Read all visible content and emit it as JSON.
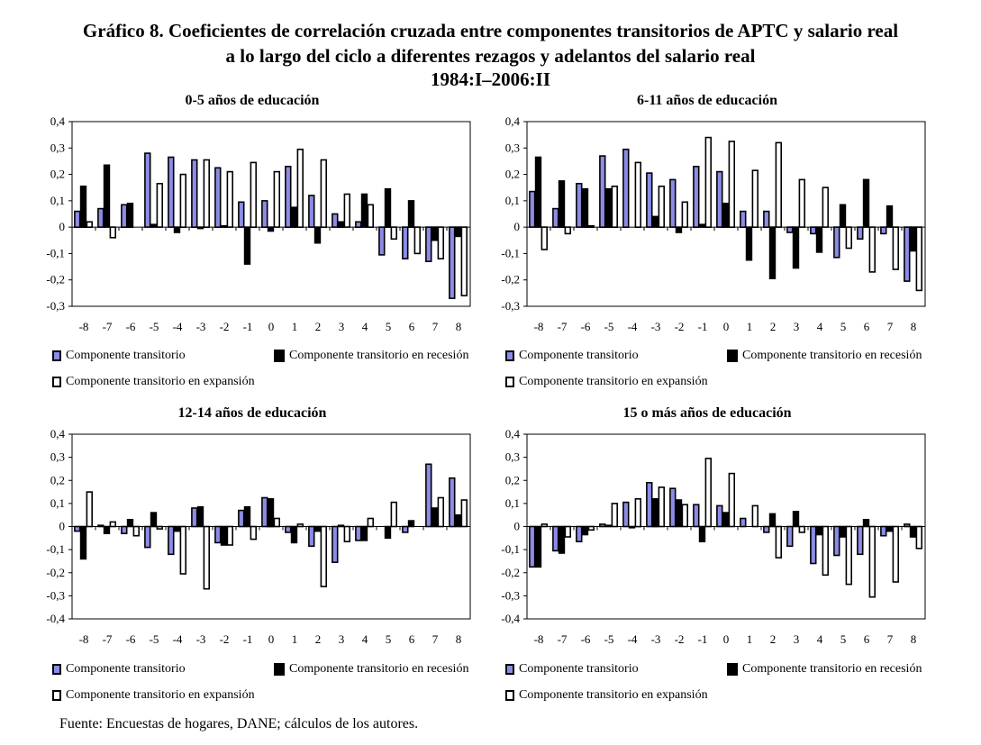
{
  "title": {
    "line1": "Gráfico 8. Coeficientes de correlación cruzada entre componentes transitorios de APTC y salario real",
    "line2": "a lo largo del ciclo a diferentes rezagos y adelantos del salario real",
    "line3": "1984:I–2006:II"
  },
  "legend": {
    "transitorio": "Componente transitorio",
    "recesion": "Componente transitorio en recesión",
    "expansion": "Componente transitorio en expansión"
  },
  "colors": {
    "transitorio": "#8c8ce6",
    "recesion": "#000000",
    "expansion": "#ffffff"
  },
  "footer": "Fuente: Encuestas de hogares, DANE; cálculos de los autores.",
  "chart_data": [
    {
      "type": "bar",
      "title": "0-5 años de educación",
      "categories": [
        "-8",
        "-7",
        "-6",
        "-5",
        "-4",
        "-3",
        "-2",
        "-1",
        "0",
        "1",
        "2",
        "3",
        "4",
        "5",
        "6",
        "7",
        "8"
      ],
      "ylim": [
        -0.3,
        0.4
      ],
      "yticks": [
        "0,4",
        "0,3",
        "0,2",
        "0,1",
        "0",
        "-0,1",
        "-0,2",
        "-0,3"
      ],
      "ytick_values": [
        0.4,
        0.3,
        0.2,
        0.1,
        0,
        -0.1,
        -0.2,
        -0.3
      ],
      "xlabel": "",
      "ylabel": "",
      "series": [
        {
          "name": "Componente transitorio",
          "values": [
            0.06,
            0.07,
            0.085,
            0.28,
            0.265,
            0.255,
            0.225,
            0.095,
            0.1,
            0.23,
            0.12,
            0.05,
            0.02,
            -0.105,
            -0.12,
            -0.13,
            -0.27
          ]
        },
        {
          "name": "Componente transitorio en recesión",
          "values": [
            0.155,
            0.235,
            0.09,
            0.01,
            -0.02,
            -0.005,
            0.005,
            -0.14,
            -0.015,
            0.075,
            -0.06,
            0.02,
            0.125,
            0.145,
            0.1,
            -0.05,
            -0.035
          ]
        },
        {
          "name": "Componente transitorio en expansión",
          "values": [
            0.02,
            -0.04,
            0,
            0.165,
            0.2,
            0.255,
            0.21,
            0.245,
            0.21,
            0.295,
            0.255,
            0.125,
            0.085,
            -0.045,
            -0.1,
            -0.12,
            -0.26
          ]
        }
      ]
    },
    {
      "type": "bar",
      "title": "6-11 años de educación",
      "categories": [
        "-8",
        "-7",
        "-6",
        "-5",
        "-4",
        "-3",
        "-2",
        "-1",
        "0",
        "1",
        "2",
        "3",
        "4",
        "5",
        "6",
        "7",
        "8"
      ],
      "ylim": [
        -0.3,
        0.4
      ],
      "yticks": [
        "0,4",
        "0,3",
        "0,2",
        "0,1",
        "0",
        "-0,1",
        "-0,2",
        "-0,3"
      ],
      "ytick_values": [
        0.4,
        0.3,
        0.2,
        0.1,
        0,
        -0.1,
        -0.2,
        -0.3
      ],
      "xlabel": "",
      "ylabel": "",
      "series": [
        {
          "name": "Componente transitorio",
          "values": [
            0.135,
            0.07,
            0.165,
            0.27,
            0.295,
            0.205,
            0.18,
            0.23,
            0.21,
            0.06,
            0.06,
            -0.02,
            -0.025,
            -0.115,
            -0.045,
            -0.025,
            -0.205
          ]
        },
        {
          "name": "Componente transitorio en recesión",
          "values": [
            0.265,
            0.175,
            0.145,
            0.145,
            0,
            0.04,
            -0.02,
            0.01,
            0.09,
            -0.125,
            -0.195,
            -0.155,
            -0.095,
            0.085,
            0.18,
            0.08,
            -0.09
          ]
        },
        {
          "name": "Componente transitorio en expansión",
          "values": [
            -0.085,
            -0.025,
            0.005,
            0.155,
            0.245,
            0.155,
            0.095,
            0.34,
            0.325,
            0.215,
            0.32,
            0.18,
            0.15,
            -0.08,
            -0.17,
            -0.16,
            -0.24
          ]
        }
      ]
    },
    {
      "type": "bar",
      "title": "12-14 años de educación",
      "categories": [
        "-8",
        "-7",
        "-6",
        "-5",
        "-4",
        "-3",
        "-2",
        "-1",
        "0",
        "1",
        "2",
        "3",
        "4",
        "5",
        "6",
        "7",
        "8"
      ],
      "ylim": [
        -0.4,
        0.4
      ],
      "yticks": [
        "0,4",
        "0,3",
        "0,2",
        "0,1",
        "0",
        "-0,1",
        "-0,2",
        "-0,3",
        "-0,4"
      ],
      "ytick_values": [
        0.4,
        0.3,
        0.2,
        0.1,
        0,
        -0.1,
        -0.2,
        -0.3,
        -0.4
      ],
      "xlabel": "",
      "ylabel": "",
      "series": [
        {
          "name": "Componente transitorio",
          "values": [
            -0.02,
            0.005,
            -0.03,
            -0.09,
            -0.12,
            0.08,
            -0.07,
            0.07,
            0.125,
            -0.025,
            -0.085,
            -0.155,
            -0.06,
            0,
            -0.025,
            0.27,
            0.21
          ]
        },
        {
          "name": "Componente transitorio en recesión",
          "values": [
            -0.14,
            -0.03,
            0.03,
            0.06,
            -0.02,
            0.085,
            -0.08,
            0.085,
            0.12,
            -0.07,
            -0.02,
            0.005,
            -0.06,
            -0.05,
            0.025,
            0.08,
            0.05
          ]
        },
        {
          "name": "Componente transitorio en expansión",
          "values": [
            0.15,
            0.02,
            -0.04,
            -0.01,
            -0.205,
            -0.27,
            -0.08,
            -0.055,
            0.035,
            0.01,
            -0.26,
            -0.065,
            0.035,
            0.105,
            0,
            0.125,
            0.115
          ]
        }
      ]
    },
    {
      "type": "bar",
      "title": "15 o más años de educación",
      "categories": [
        "-8",
        "-7",
        "-6",
        "-5",
        "-4",
        "-3",
        "-2",
        "-1",
        "0",
        "1",
        "2",
        "3",
        "4",
        "5",
        "6",
        "7",
        "8"
      ],
      "ylim": [
        -0.4,
        0.4
      ],
      "yticks": [
        "0,4",
        "0,3",
        "0,2",
        "0,1",
        "0",
        "-0,1",
        "-0,2",
        "-0,3",
        "-0,4"
      ],
      "ytick_values": [
        0.4,
        0.3,
        0.2,
        0.1,
        0,
        -0.1,
        -0.2,
        -0.3,
        -0.4
      ],
      "xlabel": "",
      "ylabel": "",
      "series": [
        {
          "name": "Componente transitorio",
          "values": [
            -0.175,
            -0.105,
            -0.065,
            0.01,
            0.105,
            0.19,
            0.165,
            0.095,
            0.09,
            0.035,
            -0.025,
            -0.085,
            -0.16,
            -0.125,
            -0.12,
            -0.04,
            0.01
          ]
        },
        {
          "name": "Componente transitorio en recesión",
          "values": [
            -0.175,
            -0.115,
            -0.035,
            0.005,
            -0.005,
            0.12,
            0.115,
            -0.065,
            0.06,
            0,
            0.055,
            0.065,
            -0.035,
            -0.045,
            0.03,
            -0.02,
            -0.045
          ]
        },
        {
          "name": "Componente transitorio en expansión",
          "values": [
            0.01,
            -0.045,
            -0.015,
            0.1,
            0.12,
            0.17,
            0.095,
            0.295,
            0.23,
            0.09,
            -0.135,
            -0.025,
            -0.21,
            -0.25,
            -0.305,
            -0.24,
            -0.095
          ]
        }
      ]
    }
  ]
}
